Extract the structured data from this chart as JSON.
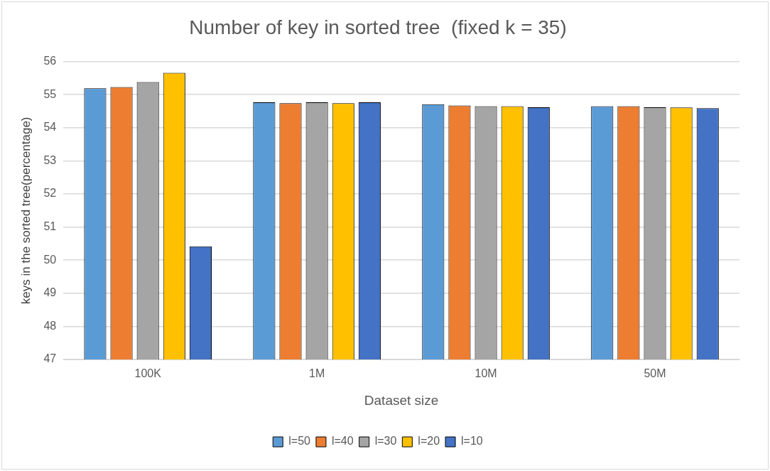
{
  "chart_data": {
    "type": "bar",
    "title": "Number of key in sorted tree  (fixed k = 35)",
    "xlabel": "Dataset size",
    "ylabel": "keys in the sorted tree(percentage)",
    "categories": [
      "100K",
      "1M",
      "10M",
      "50M"
    ],
    "series": [
      {
        "name": "l=50",
        "color": "#5b9bd5",
        "values": [
          55.19,
          54.77,
          54.71,
          54.65
        ]
      },
      {
        "name": "l=40",
        "color": "#ed7d31",
        "values": [
          55.23,
          54.74,
          54.67,
          54.65
        ]
      },
      {
        "name": "l=30",
        "color": "#a5a5a5",
        "values": [
          55.38,
          54.77,
          54.65,
          54.62
        ]
      },
      {
        "name": "l=20",
        "color": "#ffc000",
        "values": [
          55.66,
          54.74,
          54.65,
          54.61
        ]
      },
      {
        "name": "l=10",
        "color": "#4472c4",
        "values": [
          50.42,
          54.77,
          54.62,
          54.59
        ]
      }
    ],
    "ylim": [
      47,
      56
    ],
    "yticks": [
      47,
      48,
      49,
      50,
      51,
      52,
      53,
      54,
      55,
      56
    ],
    "grid": "y",
    "legend": "bottom"
  }
}
